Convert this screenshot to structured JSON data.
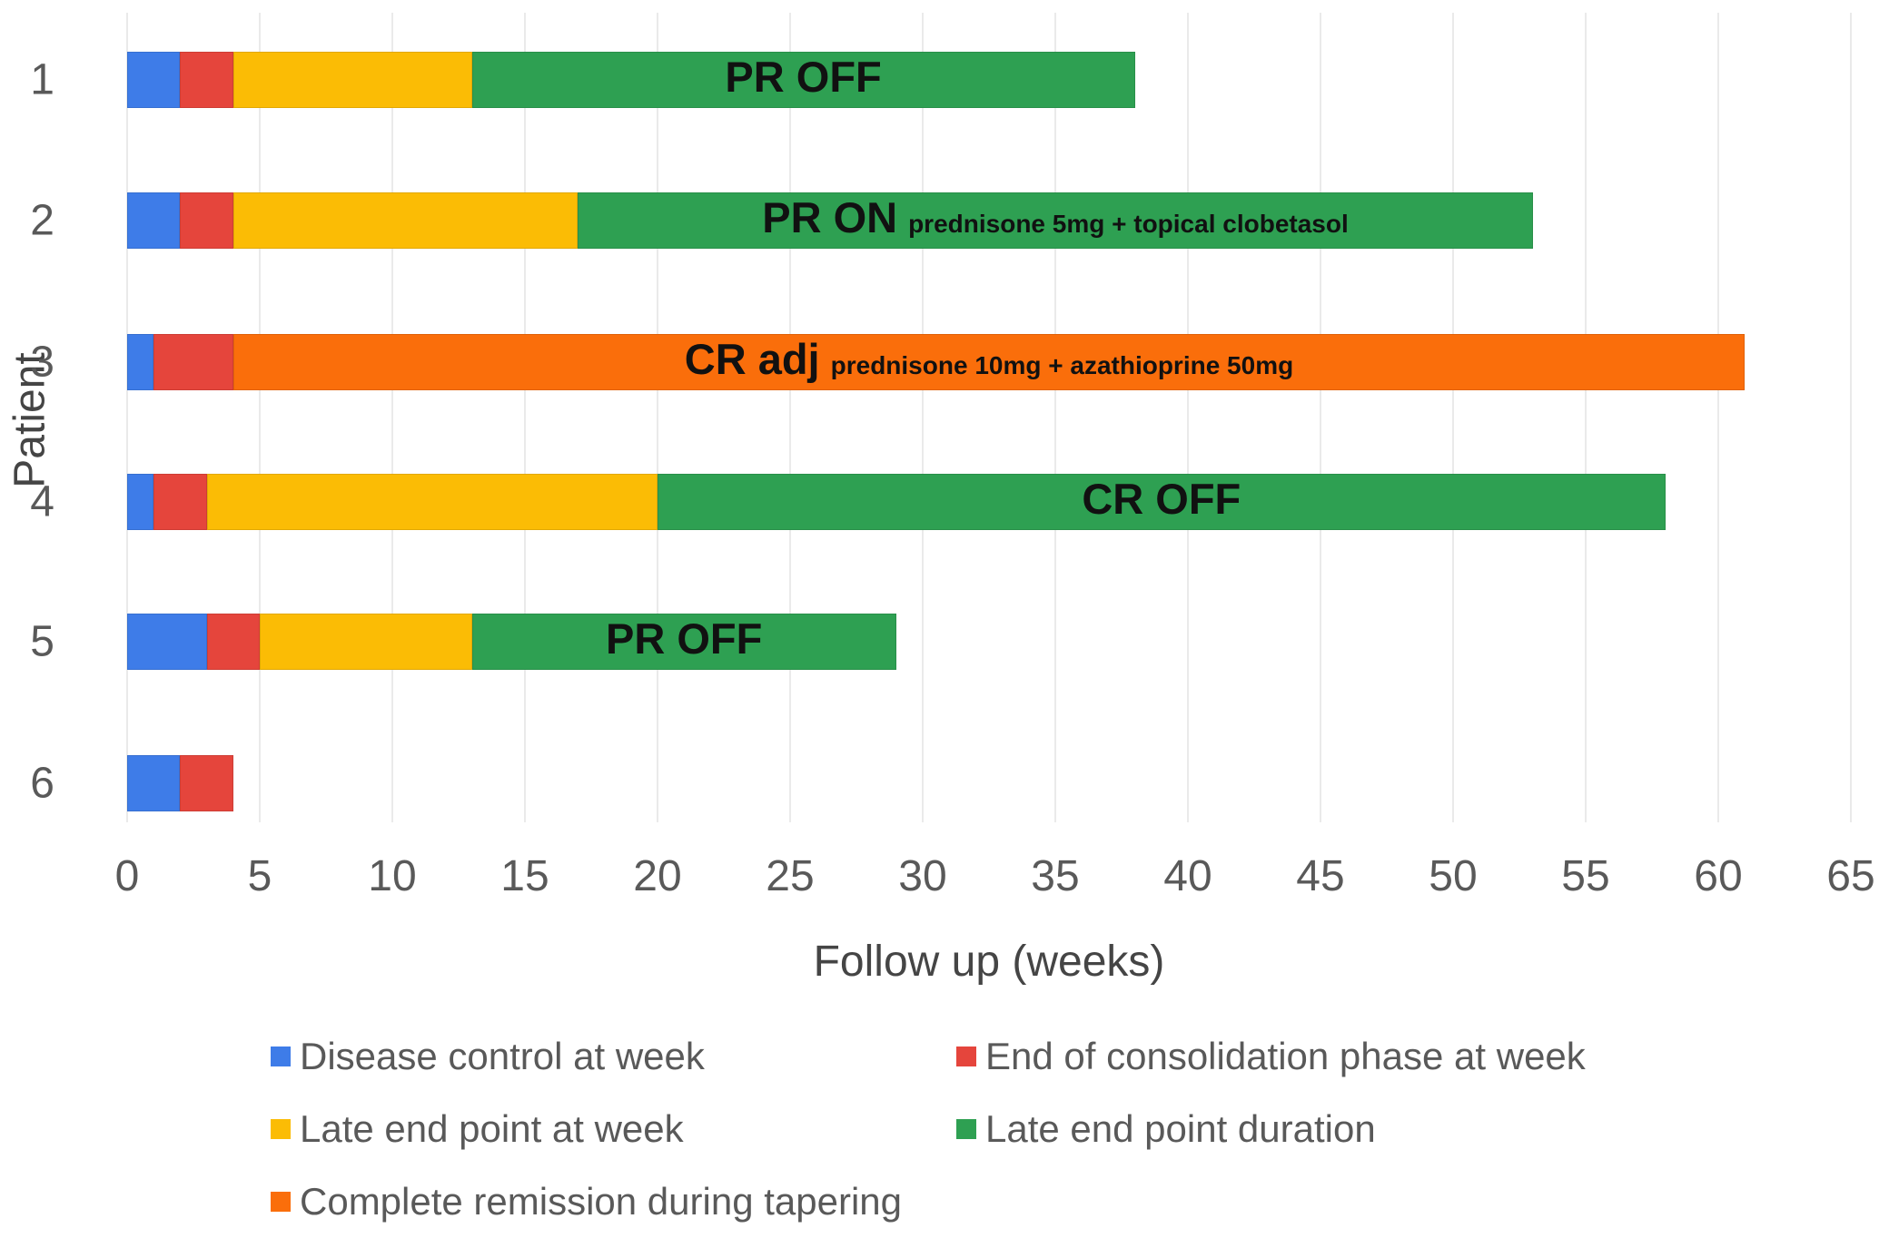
{
  "colors": {
    "blue": "#3E7CE8",
    "red": "#E5453C",
    "yellow": "#FBBC05",
    "green": "#2EA052",
    "orange": "#FA6E0B",
    "grid": "#EAEAEA",
    "tick_text": "#595959",
    "axis_title_text": "#454545",
    "bar_label_text": "#111111"
  },
  "chart_data": {
    "type": "bar",
    "variant": "horizontal-stacked",
    "title": "",
    "xlabel": "Follow up (weeks)",
    "ylabel": "Patient",
    "xlim": [
      0,
      65
    ],
    "x_ticks": [
      0,
      5,
      10,
      15,
      20,
      25,
      30,
      35,
      40,
      45,
      50,
      55,
      60,
      65
    ],
    "grid": "vertical-light",
    "legend_position": "bottom-two-columns",
    "categories": [
      "1",
      "2",
      "3",
      "4",
      "5",
      "6"
    ],
    "series": [
      {
        "name": "Disease control at week",
        "color": "blue",
        "values": [
          2,
          2,
          1,
          1,
          3,
          2
        ]
      },
      {
        "name": "End of consolidation phase at week",
        "color": "red",
        "values": [
          2,
          2,
          3,
          2,
          2,
          2
        ]
      },
      {
        "name": "Late end point at week",
        "color": "yellow",
        "values": [
          9,
          13,
          0,
          17,
          8,
          0
        ]
      },
      {
        "name": "Late end point duration",
        "color": "green",
        "values": [
          25,
          36,
          0,
          38,
          16,
          0
        ]
      },
      {
        "name": "Complete remission during tapering",
        "color": "orange",
        "values": [
          0,
          0,
          57,
          0,
          0,
          0
        ]
      }
    ],
    "bar_totals": [
      38,
      53,
      61,
      58,
      29,
      4
    ],
    "bar_labels": [
      {
        "main": "PR OFF",
        "sub": "",
        "span": [
          13,
          38
        ]
      },
      {
        "main": "PR ON",
        "sub": "prednisone 5mg + topical clobetasol",
        "span": [
          17,
          53
        ]
      },
      {
        "main": "CR adj",
        "sub": "prednisone 10mg + azathioprine 50mg",
        "span": [
          4,
          61
        ]
      },
      {
        "main": "CR OFF",
        "sub": "",
        "span": [
          20,
          58
        ]
      },
      {
        "main": "PR OFF",
        "sub": "",
        "span": [
          13,
          29
        ]
      },
      {
        "main": "",
        "sub": "",
        "span": [
          0,
          0
        ]
      }
    ]
  },
  "legend": {
    "items": [
      {
        "label": "Disease control at week",
        "color": "blue"
      },
      {
        "label": "End of consolidation phase at week",
        "color": "red"
      },
      {
        "label": "Late end point at week",
        "color": "yellow"
      },
      {
        "label": "Late end point duration",
        "color": "green"
      },
      {
        "label": "Complete remission during tapering",
        "color": "orange"
      }
    ]
  }
}
